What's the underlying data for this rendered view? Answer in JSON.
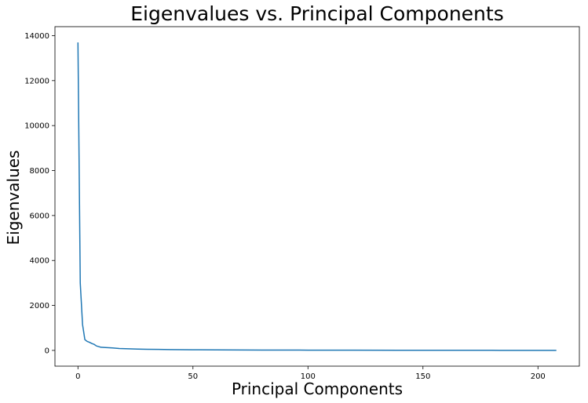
{
  "chart_data": {
    "type": "line",
    "title": "Eigenvalues vs. Principal Components",
    "xlabel": "Principal Components",
    "ylabel": "Eigenvalues",
    "xlim": [
      -10,
      218
    ],
    "ylim": [
      -700,
      14400
    ],
    "x_ticks": [
      0,
      50,
      100,
      150,
      200
    ],
    "y_ticks": [
      0,
      2000,
      4000,
      6000,
      8000,
      10000,
      12000,
      14000
    ],
    "grid": false,
    "legend": "none",
    "color": "#1f77b4",
    "x": [
      0,
      1,
      2,
      3,
      4,
      5,
      6,
      7,
      8,
      10,
      12,
      15,
      18,
      22,
      26,
      30,
      35,
      40,
      50,
      60,
      70,
      80,
      100,
      120,
      150,
      180,
      208
    ],
    "y": [
      13700,
      3000,
      1150,
      480,
      400,
      360,
      310,
      270,
      200,
      140,
      130,
      110,
      85,
      70,
      60,
      52,
      45,
      38,
      30,
      24,
      20,
      17,
      12,
      9,
      6,
      4,
      2
    ]
  }
}
